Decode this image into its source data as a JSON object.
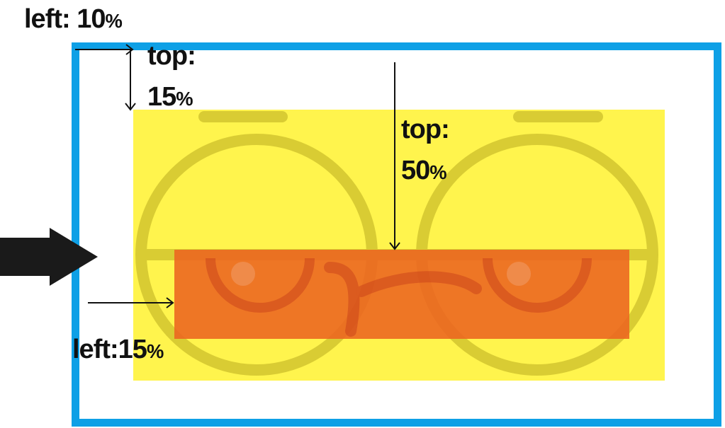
{
  "annotations": {
    "outer_left": {
      "prefix": "left:",
      "value": "10",
      "unit": "%"
    },
    "outer_top": {
      "prefix": "top:",
      "value": "15",
      "unit": "%"
    },
    "inner_top": {
      "prefix": "top:",
      "value": "50",
      "unit": "%"
    },
    "inner_left": {
      "prefix": "left:",
      "value": "15",
      "unit": "%"
    }
  },
  "colors": {
    "frame_border": "#0ea0e6",
    "yellow_box": "#fff44d",
    "face_lines": "#d9cc33",
    "orange_box": "#ec6420",
    "arrow": "#1a1a1a"
  },
  "icons": {
    "pointer": "big-right-arrow-icon",
    "face": "goggle-face-illustration"
  }
}
